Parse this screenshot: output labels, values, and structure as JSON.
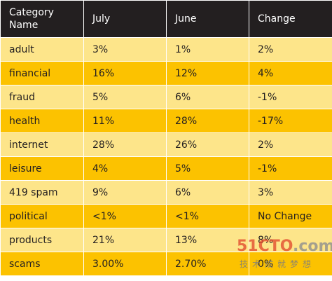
{
  "chart_data": {
    "type": "table",
    "columns": [
      "Category Name",
      "July",
      "June",
      "Change"
    ],
    "rows": [
      [
        "adult",
        "3%",
        "1%",
        "2%"
      ],
      [
        "financial",
        "16%",
        "12%",
        "4%"
      ],
      [
        "fraud",
        "5%",
        "6%",
        "-1%"
      ],
      [
        "health",
        "11%",
        "28%",
        "-17%"
      ],
      [
        "internet",
        "28%",
        "26%",
        "2%"
      ],
      [
        "leisure",
        "4%",
        "5%",
        "-1%"
      ],
      [
        "419 spam",
        "9%",
        "6%",
        "3%"
      ],
      [
        "political",
        "<1%",
        "<1%",
        "No Change"
      ],
      [
        "products",
        "21%",
        "13%",
        "8%"
      ],
      [
        "scams",
        "3.00%",
        "2.70%",
        "0%"
      ]
    ],
    "colors": {
      "header_bg": "#231f20",
      "header_text": "#ffffff",
      "row_light": "#fde58a",
      "row_dark": "#fcc200",
      "text": "#231f20"
    }
  },
  "watermark": {
    "brand_a": "51CTO",
    "brand_b": ".com",
    "tagline": "技术成就梦想"
  }
}
